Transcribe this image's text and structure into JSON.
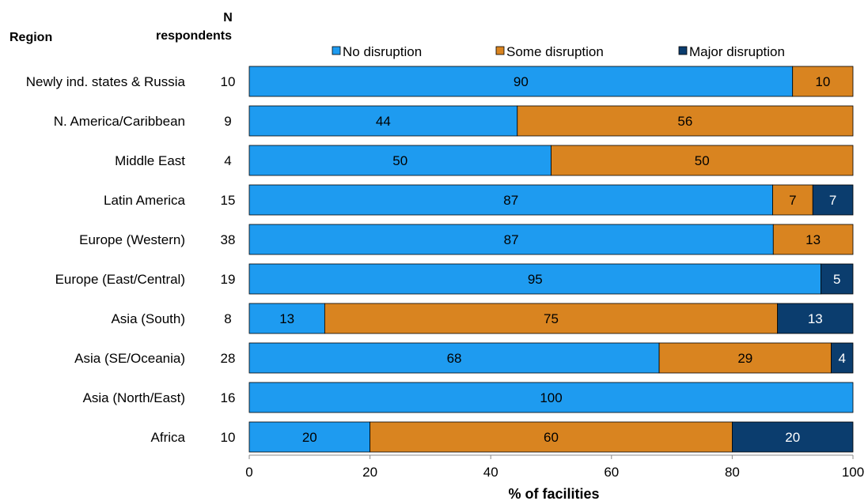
{
  "header": {
    "region_label": "Region",
    "n_label_line1": "N",
    "n_label_line2": "respondents"
  },
  "colors": {
    "No disruption": "#1E9BF0",
    "Some disruption": "#D98420",
    "Major disruption": "#0B3D6E"
  },
  "chart_data": {
    "type": "bar",
    "orientation": "horizontal",
    "stacked": true,
    "categories": [
      "Newly ind. states & Russia",
      "N. America/Caribbean",
      "Middle East",
      "Latin America",
      "Europe (Western)",
      "Europe (East/Central)",
      "Asia (South)",
      "Asia (SE/Oceania)",
      "Asia (North/East)",
      "Africa"
    ],
    "n_respondents": [
      10,
      9,
      4,
      15,
      38,
      19,
      8,
      28,
      16,
      10
    ],
    "series": [
      {
        "name": "No disruption",
        "values": [
          90,
          44.4,
          50,
          86.7,
          86.8,
          94.7,
          12.5,
          67.9,
          100,
          20
        ],
        "labels": [
          "90",
          "44",
          "50",
          "87",
          "87",
          "95",
          "13",
          "68",
          "100",
          "20"
        ]
      },
      {
        "name": "Some disruption",
        "values": [
          10,
          55.6,
          50,
          6.65,
          13.2,
          0,
          75,
          28.5,
          0,
          60
        ],
        "labels": [
          "10",
          "56",
          "50",
          "7",
          "13",
          "",
          "75",
          "29",
          "",
          "60"
        ]
      },
      {
        "name": "Major disruption",
        "values": [
          0,
          0,
          0,
          6.65,
          0,
          5.3,
          12.5,
          3.6,
          0,
          20
        ],
        "labels": [
          "",
          "",
          "",
          "7",
          "",
          "5",
          "13",
          "4",
          "",
          "20"
        ]
      }
    ],
    "xlim": [
      0,
      100
    ],
    "xticks": [
      "0",
      "20",
      "40",
      "60",
      "80",
      "100"
    ],
    "xlabel": "% of facilities",
    "ylabel": "",
    "title": "",
    "legend_position": "top",
    "grid": false
  }
}
